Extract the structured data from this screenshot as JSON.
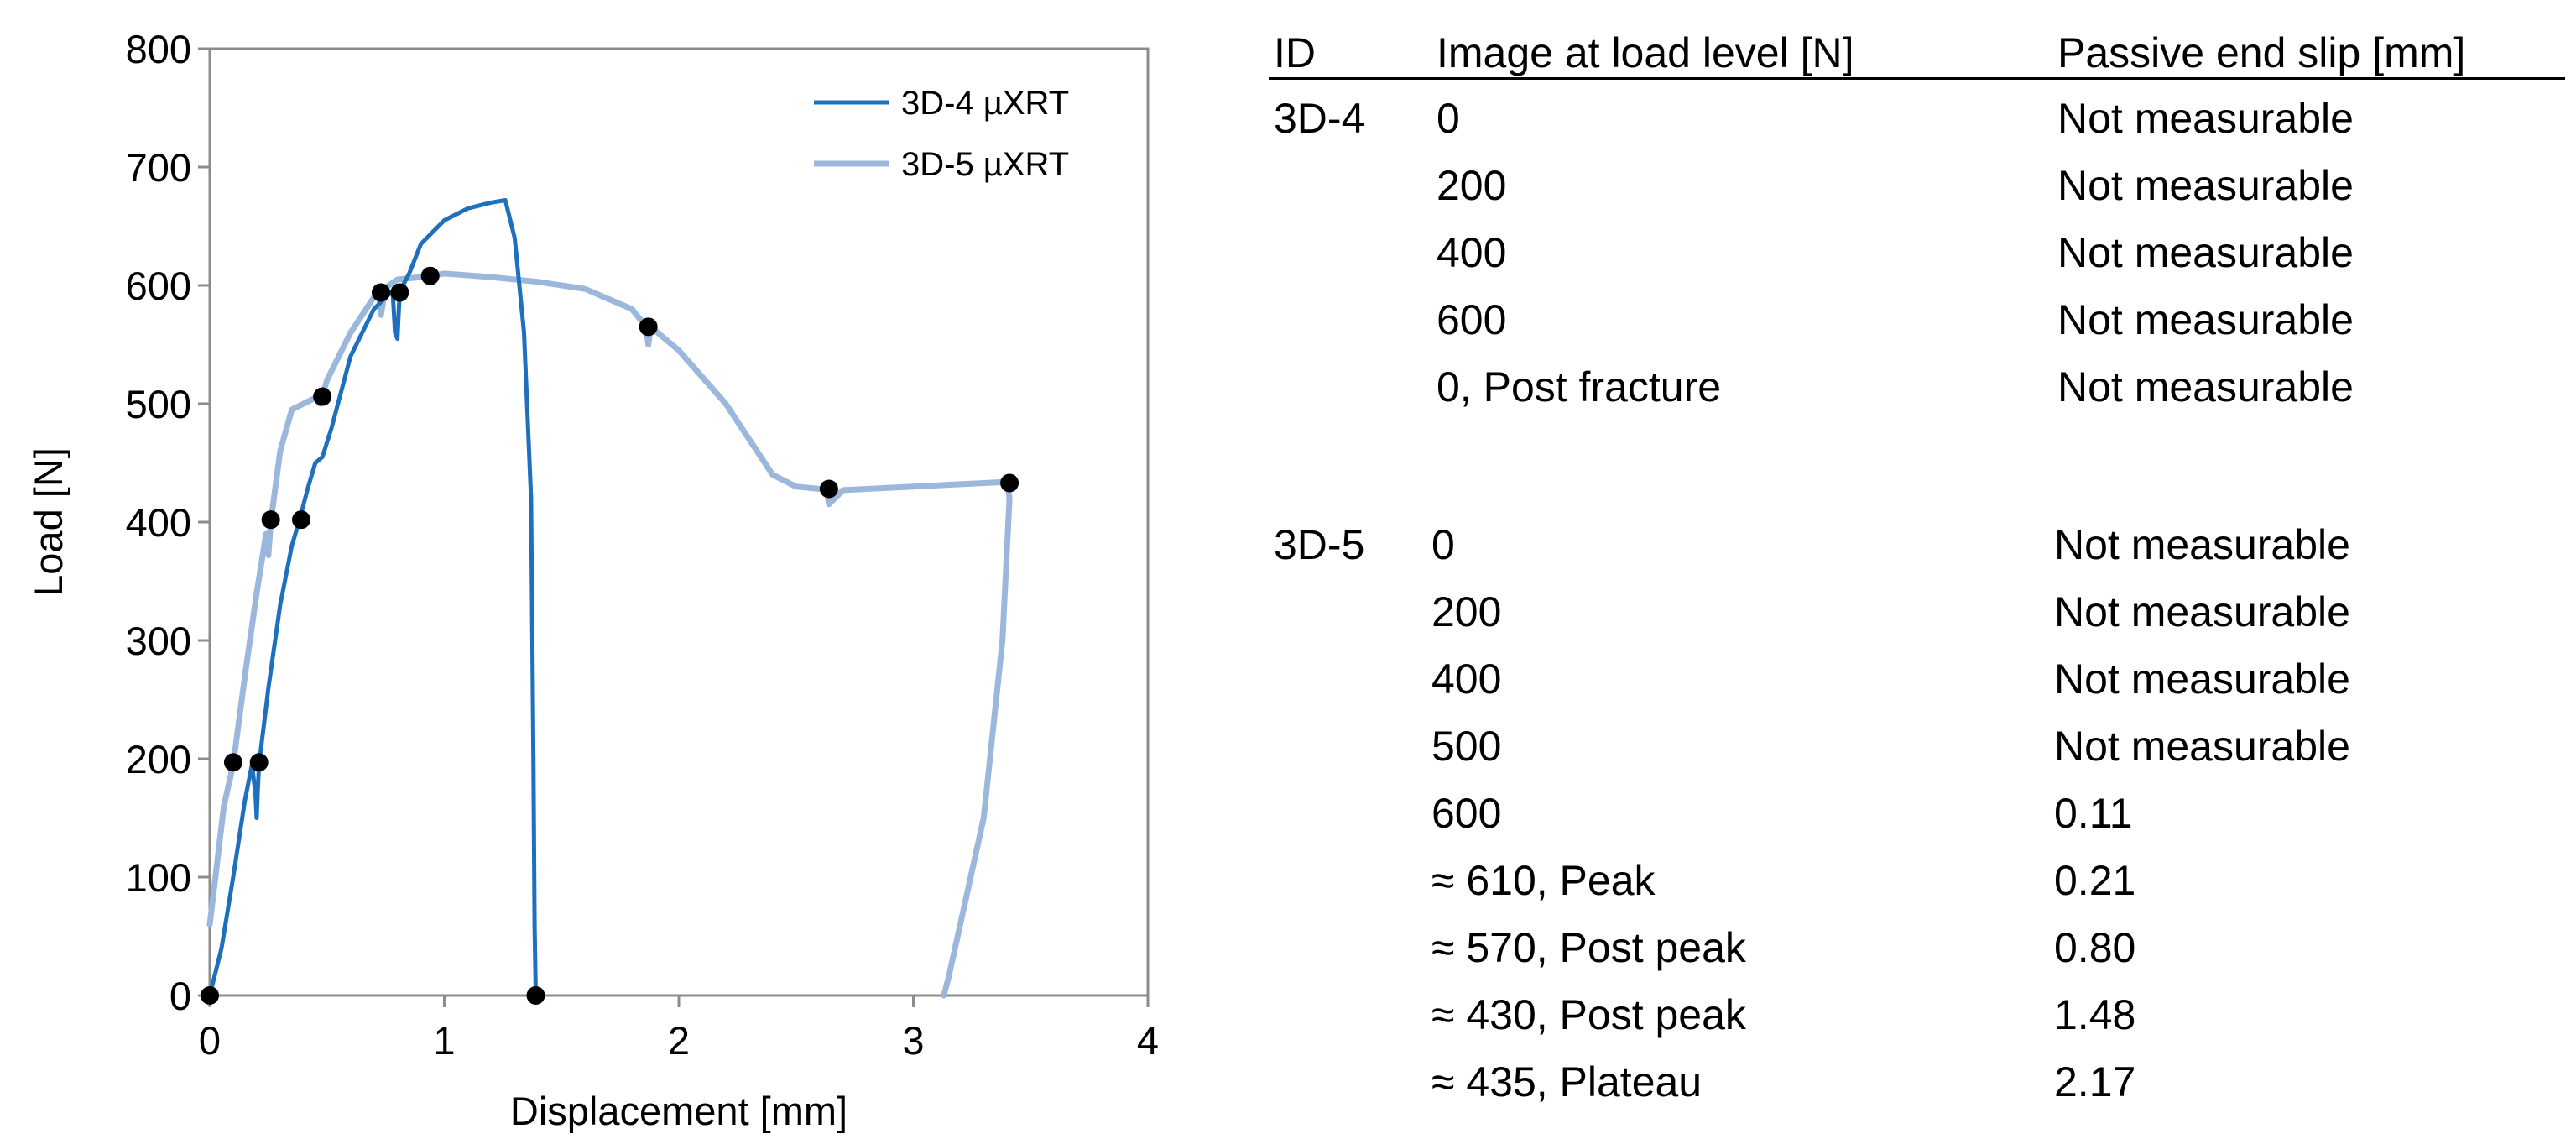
{
  "chart_data": {
    "type": "line",
    "title": "",
    "xlabel": "Displacement [mm]",
    "ylabel": "Load [N]",
    "xlim": [
      0,
      4
    ],
    "ylim": [
      0,
      800
    ],
    "xticks": [
      0,
      1,
      2,
      3,
      4
    ],
    "yticks": [
      0,
      100,
      200,
      300,
      400,
      500,
      600,
      700,
      800
    ],
    "grid": false,
    "legend_position": "top-right",
    "series": [
      {
        "name": "3D-4 µXRT",
        "color": "#1f6fbf",
        "x": [
          0,
          0.05,
          0.1,
          0.15,
          0.18,
          0.195,
          0.2,
          0.205,
          0.21,
          0.25,
          0.3,
          0.35,
          0.38,
          0.42,
          0.45,
          0.48,
          0.52,
          0.6,
          0.7,
          0.75,
          0.78,
          0.79,
          0.8,
          0.81,
          0.85,
          0.9,
          1.0,
          1.1,
          1.2,
          1.26,
          1.3,
          1.34,
          1.37,
          1.38,
          1.385,
          1.39
        ],
        "y": [
          0,
          40,
          100,
          165,
          195,
          170,
          150,
          175,
          195,
          260,
          330,
          380,
          400,
          430,
          450,
          455,
          480,
          540,
          580,
          590,
          595,
          560,
          555,
          595,
          610,
          635,
          655,
          665,
          670,
          672,
          640,
          560,
          420,
          200,
          60,
          0
        ]
      },
      {
        "name": "3D-5 µXRT",
        "color": "#9bb7dc",
        "x": [
          0,
          0.03,
          0.06,
          0.1,
          0.15,
          0.2,
          0.24,
          0.25,
          0.26,
          0.3,
          0.35,
          0.4,
          0.45,
          0.47,
          0.5,
          0.6,
          0.7,
          0.72,
          0.73,
          0.75,
          0.8,
          0.9,
          0.94,
          1.0,
          1.2,
          1.4,
          1.6,
          1.8,
          1.86,
          1.87,
          1.88,
          2.0,
          2.2,
          2.3,
          2.4,
          2.5,
          2.6,
          2.63,
          2.64,
          2.7,
          2.8,
          3.0,
          3.2,
          3.4,
          3.41,
          3.38,
          3.3,
          3.2,
          3.15,
          3.13
        ],
        "y": [
          60,
          110,
          160,
          195,
          270,
          340,
          390,
          372,
          400,
          460,
          495,
          500,
          505,
          500,
          520,
          560,
          590,
          595,
          575,
          598,
          605,
          607,
          608,
          610,
          607,
          603,
          597,
          580,
          565,
          550,
          565,
          545,
          500,
          470,
          440,
          430,
          428,
          428,
          415,
          427,
          428,
          430,
          432,
          434,
          420,
          300,
          150,
          60,
          15,
          0
        ]
      }
    ],
    "markers": {
      "color": "#000000",
      "x": [
        0,
        0.1,
        0.21,
        0.26,
        0.39,
        0.48,
        0.73,
        0.81,
        0.94,
        1.87,
        2.64,
        3.41,
        1.39
      ],
      "y": [
        0,
        197,
        197,
        402,
        402,
        506,
        594,
        594,
        608,
        565,
        428,
        433,
        0
      ]
    }
  },
  "table": {
    "headers": [
      "ID",
      "Image at load level [N]",
      "Passive end slip [mm]"
    ],
    "groups": [
      {
        "id": "3D-4",
        "rows": [
          {
            "load": "0",
            "slip": "Not measurable"
          },
          {
            "load": "200",
            "slip": "Not measurable"
          },
          {
            "load": "400",
            "slip": "Not measurable"
          },
          {
            "load": "600",
            "slip": "Not measurable"
          },
          {
            "load": "0, Post fracture",
            "slip": "Not measurable"
          }
        ]
      },
      {
        "id": "3D-5",
        "rows": [
          {
            "load": "0",
            "slip": "Not measurable"
          },
          {
            "load": "200",
            "slip": "Not measurable"
          },
          {
            "load": "400",
            "slip": "Not measurable"
          },
          {
            "load": "500",
            "slip": "Not measurable"
          },
          {
            "load": "600",
            "slip": "0.11"
          },
          {
            "load": "≈ 610, Peak",
            "slip": "0.21"
          },
          {
            "load": "≈ 570, Post peak",
            "slip": "0.80"
          },
          {
            "load": "≈ 430, Post peak",
            "slip": "1.48"
          },
          {
            "load": "≈ 435, Plateau",
            "slip": "2.17"
          }
        ]
      }
    ]
  }
}
